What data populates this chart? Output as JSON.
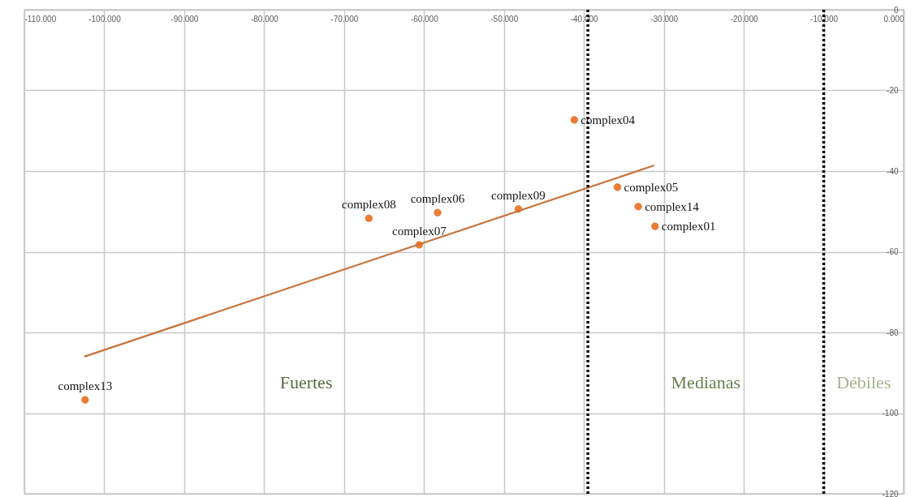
{
  "chart_data": {
    "type": "scatter",
    "series": [
      {
        "color": "#ed7d31",
        "marker": "circle",
        "x": [
          -41.2,
          -35.8,
          -33.2,
          -31.1,
          -48.2,
          -58.3,
          -66.9,
          -60.6,
          -102.4
        ],
        "values": [
          -27.3,
          -44.0,
          -48.8,
          -53.7,
          -49.4,
          -50.3,
          -51.7,
          -58.3,
          -96.7
        ]
      },
      {
        "type": "line",
        "color": "#c8733a",
        "x": [
          -102.5,
          -31.2
        ],
        "values": [
          -86.0,
          -38.6
        ]
      }
    ],
    "xlim": [
      -110,
      0
    ],
    "ylim": [
      -120,
      0
    ],
    "xticks": [
      {
        "value": -110,
        "label": "-110.000"
      },
      {
        "value": -100,
        "label": "-100.000"
      },
      {
        "value": -90,
        "label": "-90.000"
      },
      {
        "value": -80,
        "label": "-80.000"
      },
      {
        "value": -70,
        "label": "-70.000"
      },
      {
        "value": -60,
        "label": "-60.000"
      },
      {
        "value": -50,
        "label": "-50.000"
      },
      {
        "value": -40,
        "label": "-40.000"
      },
      {
        "value": -30,
        "label": "-30.000"
      },
      {
        "value": -20,
        "label": "-20.000"
      },
      {
        "value": -10,
        "label": "-10.000"
      },
      {
        "value": 0,
        "label": "0.000"
      }
    ],
    "yticks": [
      {
        "value": -120,
        "label": "-120"
      },
      {
        "value": -100,
        "label": "-100"
      },
      {
        "value": -80,
        "label": "-80"
      },
      {
        "value": -60,
        "label": "-60"
      },
      {
        "value": -40,
        "label": "-40"
      },
      {
        "value": -20,
        "label": "-20"
      },
      0
    ],
    "grid": true,
    "ref_lines": [
      {
        "axis": "x",
        "value": -39.5,
        "color": "#000000",
        "line_style": "dotted"
      },
      {
        "axis": "x",
        "value": -10,
        "color": "#000000",
        "line_style": "dotted"
      }
    ],
    "annotations": [
      {
        "text": "complex04",
        "x": -41.2,
        "y": -27.3
      },
      {
        "text": "complex05",
        "x": -35.8,
        "y": -44.0
      },
      {
        "text": "complex14",
        "x": -33.2,
        "y": -48.8
      },
      {
        "text": "complex01",
        "x": -31.1,
        "y": -53.7
      },
      {
        "text": "complex09",
        "x": -48.2,
        "y": -49.4
      },
      {
        "text": "complex06",
        "x": -58.3,
        "y": -50.3
      },
      {
        "text": "complex08",
        "x": -66.9,
        "y": -51.7
      },
      {
        "text": "complex07",
        "x": -60.6,
        "y": -58.3
      },
      {
        "text": "complex13",
        "x": -102.4,
        "y": -96.7
      },
      "Fuertes",
      "Medianas",
      "Débiles"
    ]
  }
}
